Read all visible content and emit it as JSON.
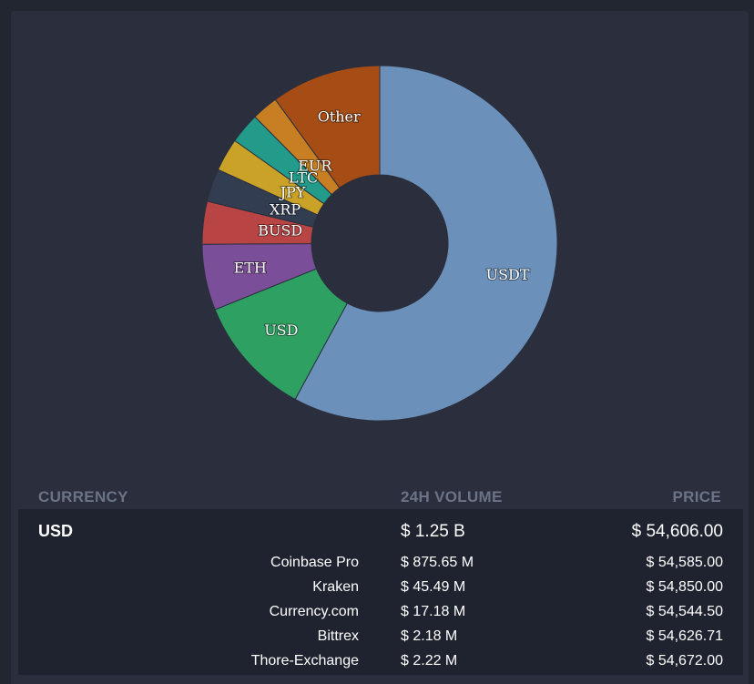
{
  "chart_data": {
    "type": "pie",
    "donut": true,
    "categories": [
      "USDT",
      "USD",
      "ETH",
      "BUSD",
      "XRP",
      "JPY",
      "LTC",
      "EUR",
      "Other"
    ],
    "values": [
      57.9,
      11.0,
      6.0,
      3.9,
      3.0,
      3.0,
      2.8,
      2.4,
      10.0
    ],
    "colors": [
      "#6b90b9",
      "#2ea062",
      "#7b4e99",
      "#b84444",
      "#323d52",
      "#c9a227",
      "#229b8b",
      "#c87f23",
      "#a64c15"
    ]
  },
  "table": {
    "headers": {
      "currency": "CURRENCY",
      "volume": "24H VOLUME",
      "price": "PRICE"
    },
    "main": {
      "currency": "USD",
      "volume": "$ 1.25 B",
      "price": "$ 54,606.00"
    },
    "exchanges": [
      {
        "name": "Coinbase Pro",
        "volume": "$ 875.65 M",
        "price": "$ 54,585.00"
      },
      {
        "name": "Kraken",
        "volume": "$ 45.49 M",
        "price": "$ 54,850.00"
      },
      {
        "name": "Currency.com",
        "volume": "$ 17.18 M",
        "price": "$ 54,544.50"
      },
      {
        "name": "Bittrex",
        "volume": "$ 2.18 M",
        "price": "$ 54,626.71"
      },
      {
        "name": "Thore-Exchange",
        "volume": "$ 2.22 M",
        "price": "$ 54,672.00"
      }
    ]
  }
}
